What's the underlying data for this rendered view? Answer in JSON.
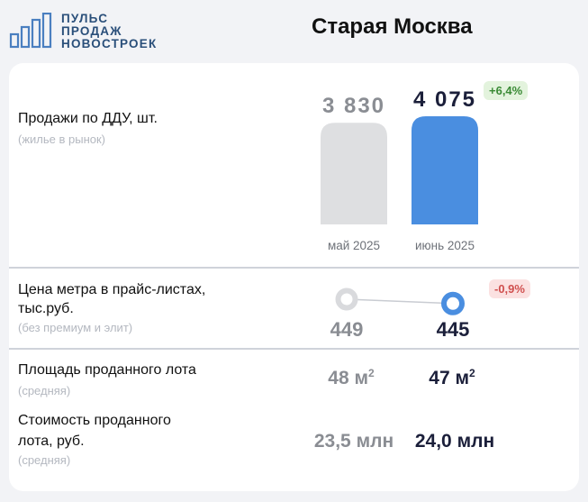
{
  "logo": {
    "lines": [
      "ПУЛЬС",
      "ПРОДАЖ",
      "НОВОСТРОЕК"
    ]
  },
  "region": "Старая Москва",
  "sales": {
    "label": "Продажи по ДДУ, шт.",
    "sublabel": "(жилье в рынок)",
    "change": "+6,4%",
    "value_labels": [
      "3 830",
      "4 075"
    ]
  },
  "price": {
    "label_line1": "Цена метра в прайс-листах,",
    "label_line2": "тыс.руб.",
    "sublabel": "(без премиум и элит)",
    "change": "-0,9%",
    "value_labels": [
      "449",
      "445"
    ]
  },
  "area": {
    "label": "Площадь проданного лота",
    "sublabel": "(средняя)",
    "values": [
      "48 м",
      "47 м"
    ],
    "unit_sup": "2"
  },
  "cost": {
    "label_line1": "Стоимость проданного",
    "label_line2": "лота, руб.",
    "sublabel": "(средняя)",
    "values": [
      "23,5 млн",
      "24,0 млн"
    ]
  },
  "chart_data": [
    {
      "type": "bar",
      "categories": [
        "май 2025",
        "июнь 2025"
      ],
      "values": [
        3830,
        4075
      ],
      "title": "Продажи по ДДУ, шт."
    },
    {
      "type": "line",
      "categories": [
        "май 2025",
        "июнь 2025"
      ],
      "values": [
        449,
        445
      ],
      "title": "Цена метра в прайс-листах, тыс.руб."
    }
  ],
  "colors": {
    "previous": "#dedfe1",
    "current": "#4a8ee0",
    "text_dark": "#1b1f3a",
    "text_grey": "#8a8d93"
  }
}
